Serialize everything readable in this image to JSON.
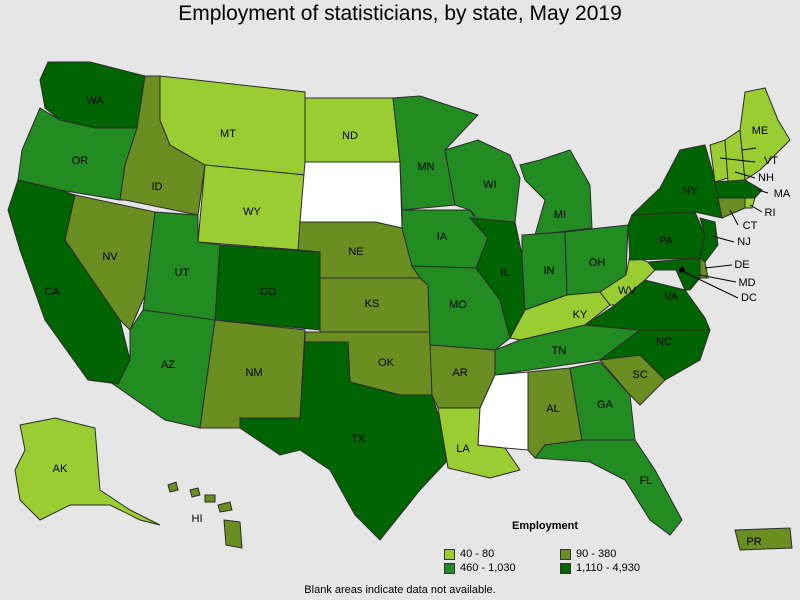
{
  "title": "Employment of statisticians, by state, May 2019",
  "legend": {
    "title": "Employment",
    "items": [
      {
        "label": "40 - 80",
        "color": "#9acd32"
      },
      {
        "label": "90 - 380",
        "color": "#6b8e23"
      },
      {
        "label": "460 - 1,030",
        "color": "#228b22"
      },
      {
        "label": "1,110 - 4,930",
        "color": "#006400"
      }
    ]
  },
  "note": "Blank areas indicate data not available.",
  "states": [
    {
      "code": "WA",
      "label": "WA",
      "cls": 3
    },
    {
      "code": "OR",
      "label": "OR",
      "cls": 2
    },
    {
      "code": "CA",
      "label": "CA",
      "cls": 3
    },
    {
      "code": "ID",
      "label": "ID",
      "cls": 1
    },
    {
      "code": "NV",
      "label": "NV",
      "cls": 1
    },
    {
      "code": "MT",
      "label": "MT",
      "cls": 0
    },
    {
      "code": "WY",
      "label": "WY",
      "cls": 0
    },
    {
      "code": "UT",
      "label": "UT",
      "cls": 2
    },
    {
      "code": "AZ",
      "label": "AZ",
      "cls": 2
    },
    {
      "code": "CO",
      "label": "CO",
      "cls": 3
    },
    {
      "code": "NM",
      "label": "NM",
      "cls": 1
    },
    {
      "code": "ND",
      "label": "ND",
      "cls": 0
    },
    {
      "code": "SD",
      "label": "",
      "cls": -1
    },
    {
      "code": "NE",
      "label": "NE",
      "cls": 1
    },
    {
      "code": "KS",
      "label": "KS",
      "cls": 1
    },
    {
      "code": "OK",
      "label": "OK",
      "cls": 1
    },
    {
      "code": "TX",
      "label": "TX",
      "cls": 3
    },
    {
      "code": "MN",
      "label": "MN",
      "cls": 2
    },
    {
      "code": "IA",
      "label": "IA",
      "cls": 2
    },
    {
      "code": "MO",
      "label": "MO",
      "cls": 2
    },
    {
      "code": "AR",
      "label": "AR",
      "cls": 1
    },
    {
      "code": "LA",
      "label": "LA",
      "cls": 0
    },
    {
      "code": "WI",
      "label": "WI",
      "cls": 2
    },
    {
      "code": "IL",
      "label": "IL",
      "cls": 3
    },
    {
      "code": "MI",
      "label": "MI",
      "cls": 2
    },
    {
      "code": "IN",
      "label": "IN",
      "cls": 2
    },
    {
      "code": "OH",
      "label": "OH",
      "cls": 2
    },
    {
      "code": "KY",
      "label": "KY",
      "cls": 0
    },
    {
      "code": "TN",
      "label": "TN",
      "cls": 2
    },
    {
      "code": "MS",
      "label": "",
      "cls": -1
    },
    {
      "code": "AL",
      "label": "AL",
      "cls": 1
    },
    {
      "code": "GA",
      "label": "GA",
      "cls": 2
    },
    {
      "code": "FL",
      "label": "FL",
      "cls": 2
    },
    {
      "code": "SC",
      "label": "SC",
      "cls": 1
    },
    {
      "code": "NC",
      "label": "NC",
      "cls": 3
    },
    {
      "code": "VA",
      "label": "VA",
      "cls": 3
    },
    {
      "code": "WV",
      "label": "WV",
      "cls": 0
    },
    {
      "code": "PA",
      "label": "PA",
      "cls": 3
    },
    {
      "code": "NY",
      "label": "NY",
      "cls": 3
    },
    {
      "code": "VT",
      "label": "VT",
      "cls": 0
    },
    {
      "code": "NH",
      "label": "NH",
      "cls": 0
    },
    {
      "code": "ME",
      "label": "ME",
      "cls": 0
    },
    {
      "code": "MA",
      "label": "MA",
      "cls": 3
    },
    {
      "code": "RI",
      "label": "RI",
      "cls": 0
    },
    {
      "code": "CT",
      "label": "CT",
      "cls": 1
    },
    {
      "code": "NJ",
      "label": "NJ",
      "cls": 3
    },
    {
      "code": "DE",
      "label": "DE",
      "cls": 1
    },
    {
      "code": "MD",
      "label": "MD",
      "cls": 3
    },
    {
      "code": "DC",
      "label": "DC",
      "cls": 3
    },
    {
      "code": "AK",
      "label": "AK",
      "cls": 0
    },
    {
      "code": "HI",
      "label": "HI",
      "cls": 1
    },
    {
      "code": "PR",
      "label": "PR",
      "cls": 1
    }
  ]
}
